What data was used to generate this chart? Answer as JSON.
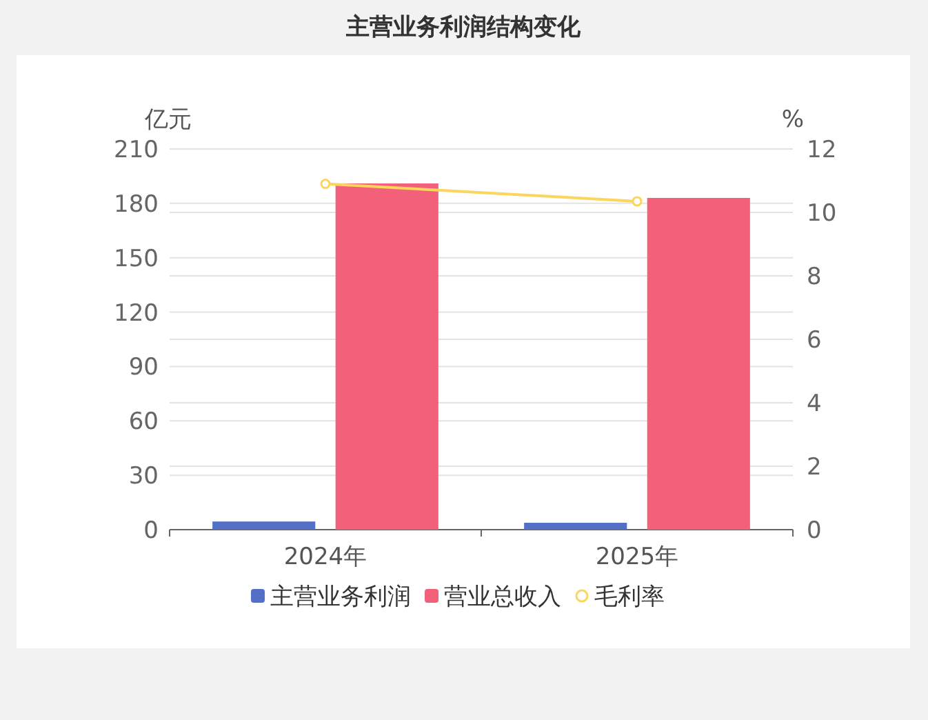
{
  "chart_data": {
    "type": "bar",
    "title": "主营业务利润结构变化",
    "ylabel": "亿元",
    "y2label": "%",
    "categories": [
      "2024年",
      "2025年"
    ],
    "series": [
      {
        "name": "主营业务利润",
        "color": "#5470c6",
        "values": [
          4.5,
          3.8
        ]
      },
      {
        "name": "营业总收入",
        "color": "#f2607a",
        "values": [
          191,
          183
        ]
      },
      {
        "name": "毛利率",
        "type": "line",
        "axis": "y2",
        "color": "#fcd55c",
        "values": [
          10.9,
          10.35
        ]
      }
    ],
    "ylim": [
      0,
      210
    ],
    "yticks": [
      0,
      30,
      60,
      90,
      120,
      150,
      180,
      210
    ],
    "y2lim": [
      0,
      12
    ],
    "y2ticks": [
      0,
      2,
      4,
      6,
      8,
      10,
      12
    ],
    "grid": true,
    "legend": "bottom",
    "marker": "circle"
  }
}
